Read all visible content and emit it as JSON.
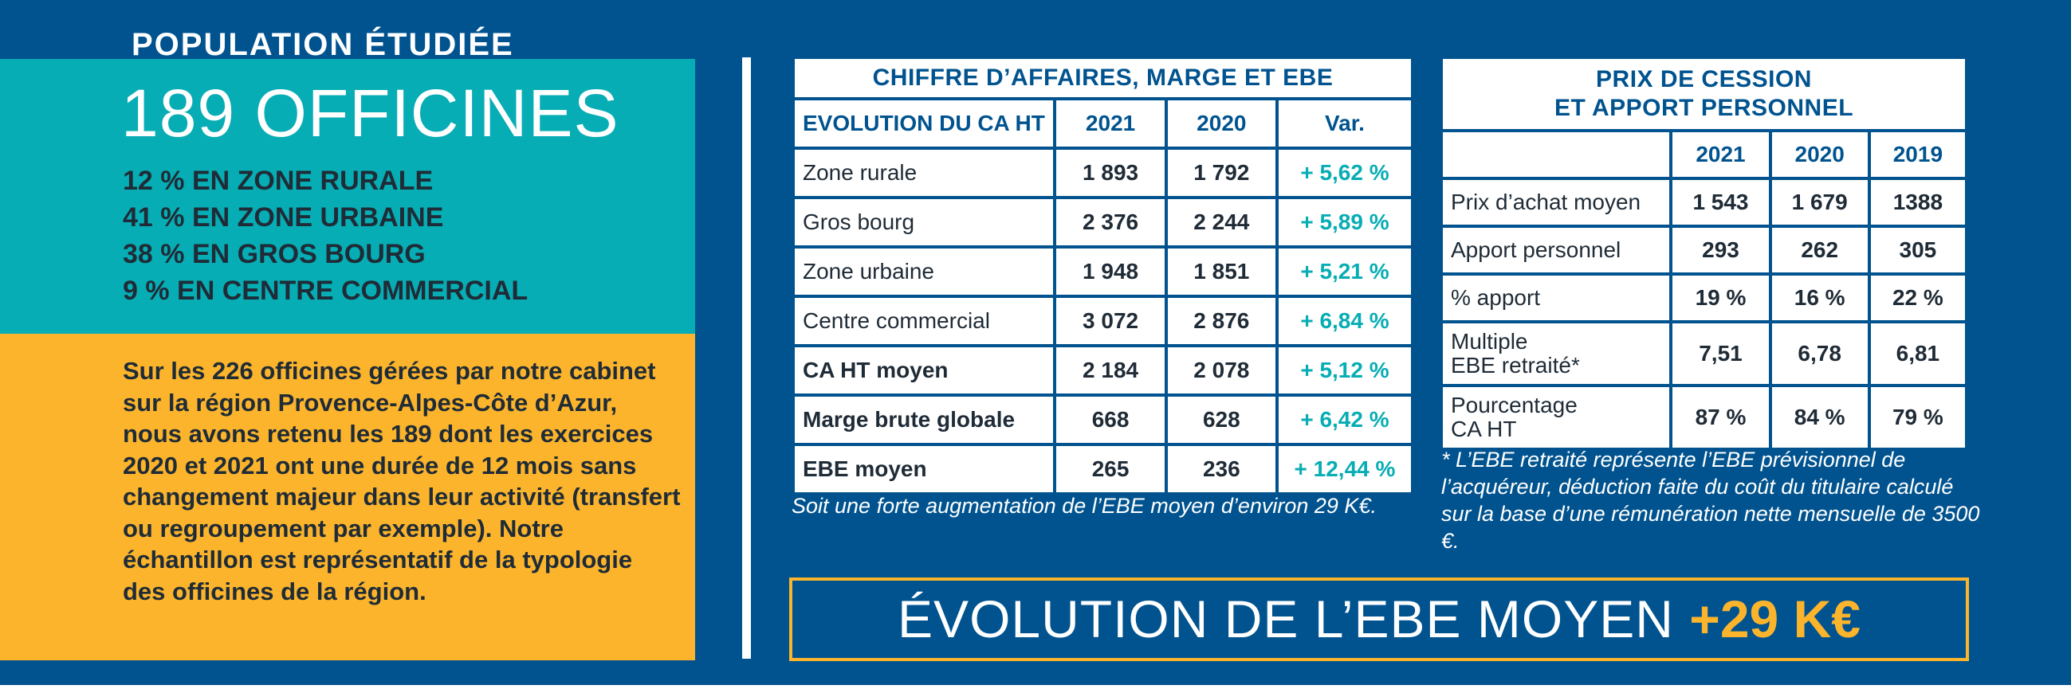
{
  "population": {
    "title": "POPULATION ÉTUDIÉE",
    "count": "189 OFFICINES",
    "stats": [
      "12 % EN ZONE RURALE",
      "41 % EN ZONE URBAINE",
      "38 % EN GROS BOURG",
      "9 % EN CENTRE COMMERCIAL"
    ],
    "desc": {
      "p1": "Sur les ",
      "n1": "226",
      "p2": " officines gérées par notre cabinet sur la région Provence-Alpes-Côte d’Azur, nous avons retenu les ",
      "n2": "189",
      "p3": " dont les exercices ",
      "n3": "2020",
      "p4": " et ",
      "n4": "2021",
      "p5": " ont une durée de ",
      "n5": "12",
      "p6": " mois sans changement majeur dans leur activité (transfert ou regroupement par exemple). Notre échantillon est représentatif de la typologie des officines de la région."
    }
  },
  "ca_table": {
    "title": "CHIFFRE D’AFFAIRES, MARGE ET EBE",
    "headers": [
      "EVOLUTION DU CA HT",
      "2021",
      "2020",
      "Var."
    ],
    "rows": [
      {
        "label": "Zone rurale",
        "y2021": "1 893",
        "y2020": "1 792",
        "var": "+ 5,62 %"
      },
      {
        "label": "Gros bourg",
        "y2021": "2 376",
        "y2020": "2 244",
        "var": "+ 5,89 %"
      },
      {
        "label": "Zone urbaine",
        "y2021": "1 948",
        "y2020": "1 851",
        "var": "+ 5,21 %"
      },
      {
        "label": "Centre commercial",
        "y2021": "3 072",
        "y2020": "2 876",
        "var": "+ 6,84 %"
      },
      {
        "label": "CA HT moyen",
        "y2021": "2 184",
        "y2020": "2 078",
        "var": "+ 5,12 %"
      },
      {
        "label": "Marge brute globale",
        "y2021": "668",
        "y2020": "628",
        "var": "+ 6,42 %"
      },
      {
        "label": "EBE moyen",
        "y2021": "265",
        "y2020": "236",
        "var": "+ 12,44 %"
      }
    ],
    "note": "Soit une forte augmentation de l’EBE moyen d’environ 29 K€."
  },
  "prix_table": {
    "title_line1": "PRIX DE CESSION",
    "title_line2": "ET APPORT PERSONNEL",
    "headers": [
      "",
      "2021",
      "2020",
      "2019"
    ],
    "rows": [
      {
        "label1": "Prix d’achat moyen",
        "label2": "",
        "y2021": "1 543",
        "y2020": "1 679",
        "y2019": "1388"
      },
      {
        "label1": "Apport personnel",
        "label2": "",
        "y2021": "293",
        "y2020": "262",
        "y2019": "305"
      },
      {
        "label1": "% apport",
        "label2": "",
        "y2021": "19 %",
        "y2020": "16 %",
        "y2019": "22 %"
      },
      {
        "label1": "Multiple",
        "label2": "EBE retraité*",
        "y2021": "7,51",
        "y2020": "6,78",
        "y2019": "6,81"
      },
      {
        "label1": "Pourcentage",
        "label2": "CA HT",
        "y2021": "87 %",
        "y2020": "84 %",
        "y2019": "79 %"
      }
    ],
    "note": "* L’EBE retraité représente l’EBE prévisionnel de l’acquéreur, déduction faite du coût du titulaire calculé sur la base d’une rémunération nette mensuelle de 3500 €."
  },
  "banner": {
    "label": "ÉVOLUTION DE L’EBE MOYEN ",
    "value": "+29 K€"
  },
  "colors": {
    "navy": "#00538f",
    "teal": "#07adb4",
    "yellow": "#fbb42c"
  }
}
